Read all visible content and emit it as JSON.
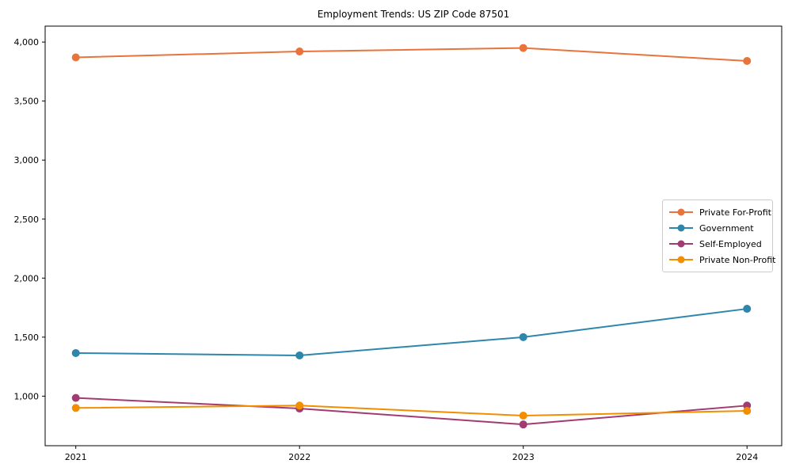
{
  "figure": {
    "background_color": "#ffffff",
    "spine_color": "#000000",
    "legend_border_color": "#cccccc"
  },
  "chart_data": {
    "type": "line",
    "title": "Employment Trends: US ZIP Code 87501",
    "xlabel": "",
    "ylabel": "",
    "x": [
      2021,
      2022,
      2023,
      2024
    ],
    "x_tick_labels": [
      "2021",
      "2022",
      "2023",
      "2024"
    ],
    "series": [
      {
        "name": "Private For-Profit",
        "color": "#E8743B",
        "values": [
          3870,
          3920,
          3950,
          3840
        ]
      },
      {
        "name": "Government",
        "color": "#2E86AB",
        "values": [
          1365,
          1345,
          1500,
          1740
        ]
      },
      {
        "name": "Self-Employed",
        "color": "#A23B72",
        "values": [
          985,
          895,
          760,
          920
        ]
      },
      {
        "name": "Private Non-Profit",
        "color": "#F18F01",
        "values": [
          900,
          920,
          835,
          875
        ]
      }
    ],
    "yticks": [
      1000,
      1500,
      2000,
      2500,
      3000,
      3500,
      4000
    ],
    "y_tick_labels": [
      "1,000",
      "1,500",
      "2,000",
      "2,500",
      "3,000",
      "3,500",
      "4,000"
    ],
    "xlim": [
      2020.863,
      2024.155
    ],
    "ylim": [
      580,
      4135
    ],
    "grid": false,
    "legend_position": "center right",
    "marker": "circle",
    "marker_radius": 5,
    "line_width": 2
  }
}
